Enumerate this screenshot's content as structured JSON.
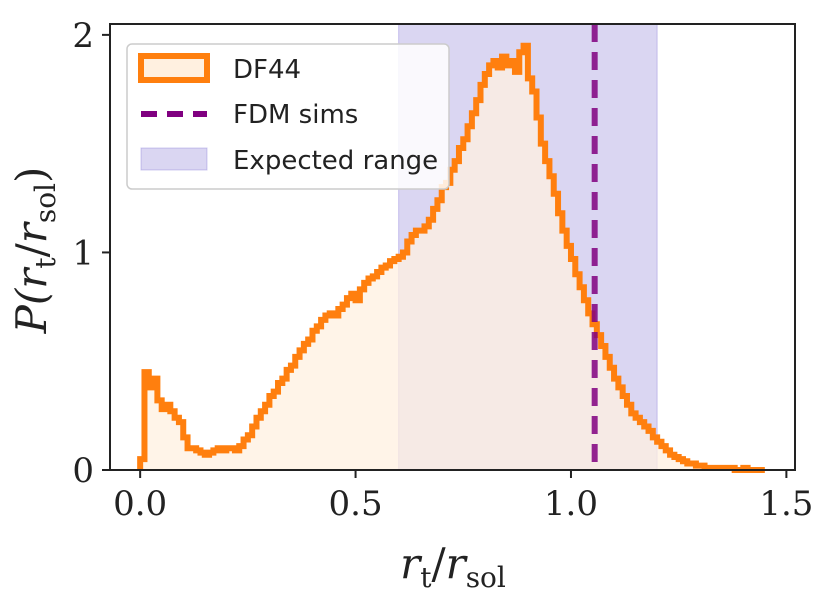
{
  "chart_data": {
    "type": "histogram",
    "xlabel": {
      "main": "r",
      "sub1": "t",
      "slash": "/",
      "main2": "r",
      "sub2": "sol"
    },
    "ylabel": {
      "P": "P(",
      "main": "r",
      "sub1": "t",
      "slash": "/",
      "main2": "r",
      "sub2": "sol",
      "close": ")"
    },
    "xlim": [
      -0.07,
      1.52
    ],
    "ylim": [
      0,
      2.05
    ],
    "xticks": [
      "0.0",
      "0.5",
      "1.0",
      "1.5"
    ],
    "xtick_values": [
      0,
      0.5,
      1.0,
      1.5
    ],
    "yticks": [
      "0",
      "1",
      "2"
    ],
    "ytick_values": [
      0,
      1,
      2
    ],
    "colors": {
      "hist": "#ff7f0e",
      "hist_fill": "#fff0e0",
      "fdm": "#800080",
      "band": "#6a5acd",
      "axis": "#222222"
    },
    "expected_range": [
      0.6,
      1.2
    ],
    "fdm_sims": 1.055,
    "legend": [
      {
        "label": "DF44"
      },
      {
        "label": "FDM sims"
      },
      {
        "label": "Expected range"
      }
    ],
    "histogram": {
      "bin_width": 0.01,
      "start": 0.0,
      "values": [
        0.05,
        0.45,
        0.38,
        0.42,
        0.32,
        0.28,
        0.3,
        0.27,
        0.24,
        0.22,
        0.15,
        0.1,
        0.1,
        0.09,
        0.08,
        0.07,
        0.08,
        0.09,
        0.1,
        0.09,
        0.1,
        0.1,
        0.09,
        0.11,
        0.14,
        0.16,
        0.2,
        0.24,
        0.27,
        0.3,
        0.34,
        0.36,
        0.4,
        0.42,
        0.46,
        0.48,
        0.52,
        0.55,
        0.58,
        0.6,
        0.64,
        0.66,
        0.69,
        0.71,
        0.72,
        0.71,
        0.74,
        0.76,
        0.79,
        0.81,
        0.78,
        0.83,
        0.86,
        0.88,
        0.89,
        0.91,
        0.93,
        0.94,
        0.96,
        0.97,
        0.98,
        1.0,
        1.05,
        1.08,
        1.1,
        1.1,
        1.12,
        1.15,
        1.2,
        1.24,
        1.3,
        1.32,
        1.38,
        1.42,
        1.48,
        1.52,
        1.58,
        1.64,
        1.7,
        1.77,
        1.82,
        1.86,
        1.88,
        1.85,
        1.9,
        1.86,
        1.88,
        1.83,
        1.92,
        1.95,
        1.8,
        1.74,
        1.62,
        1.5,
        1.42,
        1.35,
        1.27,
        1.18,
        1.1,
        1.03,
        0.97,
        0.9,
        0.84,
        0.78,
        0.72,
        0.67,
        0.62,
        0.57,
        0.52,
        0.47,
        0.42,
        0.38,
        0.34,
        0.3,
        0.26,
        0.24,
        0.22,
        0.2,
        0.18,
        0.15,
        0.13,
        0.11,
        0.09,
        0.07,
        0.06,
        0.05,
        0.04,
        0.03,
        0.03,
        0.02,
        0.02,
        0.01,
        0.01,
        0.01,
        0.01,
        0.01,
        0.01,
        0.01,
        0.0,
        0.0,
        0.01,
        0.0,
        0.0,
        0.0,
        0.0
      ]
    }
  }
}
